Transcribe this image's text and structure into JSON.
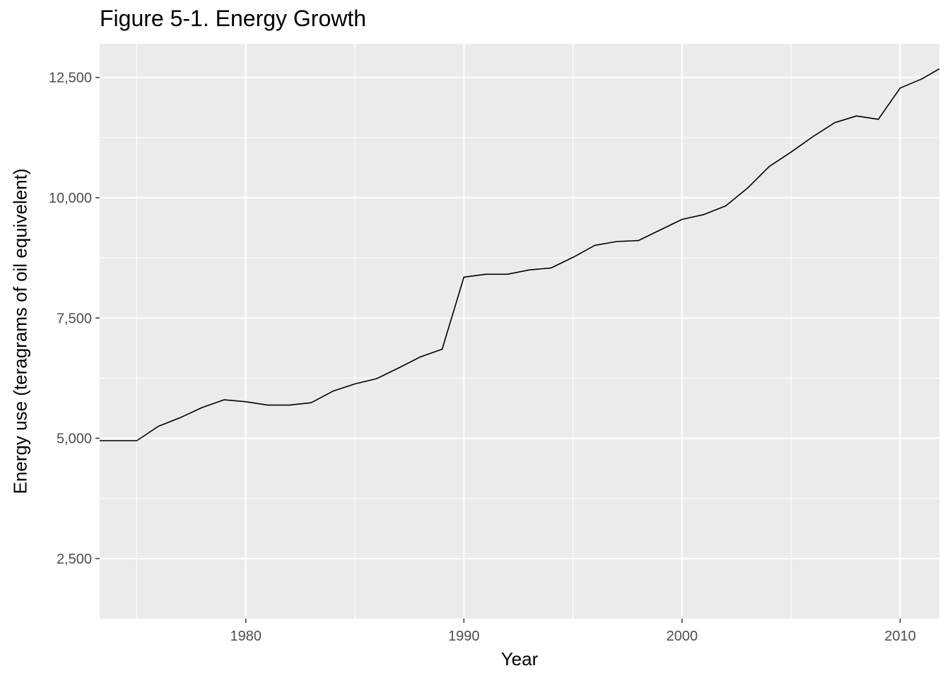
{
  "chart_data": {
    "type": "line",
    "title": "Figure 5-1. Energy Growth",
    "xlabel": "Year",
    "ylabel": "Energy use (teragrams of oil equivelent)",
    "xlim": [
      1973.3,
      2011.8
    ],
    "ylim": [
      1250,
      13200
    ],
    "x_ticks": [
      1980,
      1990,
      2000,
      2010
    ],
    "x_tick_labels": [
      "1980",
      "1990",
      "2000",
      "2010"
    ],
    "x_minor_ticks": [
      1975,
      1985,
      1995,
      2005
    ],
    "y_ticks": [
      2500,
      5000,
      7500,
      10000,
      12500
    ],
    "y_tick_labels": [
      "2,500",
      "5,000",
      "7,500",
      "10,000",
      "12,500"
    ],
    "y_minor_ticks": [
      3750,
      6250,
      8750,
      11250
    ],
    "grid": true,
    "colors": {
      "panel": "#EBEBEB",
      "grid": "#FFFFFF",
      "line": "#000000",
      "tick_text": "#4D4D4D"
    },
    "series": [
      {
        "x": [
          1973.3,
          1975,
          1976,
          1977,
          1978,
          1979,
          1980,
          1981,
          1982,
          1983,
          1984,
          1985,
          1986,
          1987,
          1988,
          1989,
          1990,
          1991,
          1992,
          1993,
          1994,
          1995,
          1996,
          1997,
          1998,
          1999,
          2000,
          2001,
          2002,
          2003,
          2004,
          2005,
          2006,
          2007,
          2008,
          2009,
          2010,
          2011,
          2011.8
        ],
        "y": [
          4950,
          4950,
          5250,
          5430,
          5640,
          5800,
          5760,
          5690,
          5690,
          5740,
          5980,
          6130,
          6240,
          6460,
          6690,
          6850,
          8350,
          8410,
          8410,
          8500,
          8540,
          8760,
          9010,
          9090,
          9110,
          9330,
          9550,
          9650,
          9830,
          10200,
          10650,
          10950,
          11270,
          11560,
          11700,
          11630,
          12280,
          12470,
          12680
        ]
      }
    ]
  }
}
